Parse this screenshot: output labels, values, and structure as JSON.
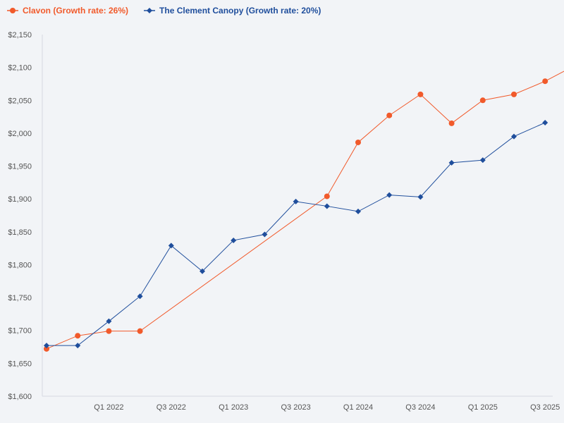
{
  "chart_data": {
    "type": "line",
    "x": [
      "Q3 2021",
      "Q4 2021",
      "Q1 2022",
      "Q2 2022",
      "Q3 2022",
      "Q4 2022",
      "Q1 2023",
      "Q2 2023",
      "Q3 2023",
      "Q4 2023",
      "Q1 2024",
      "Q2 2024",
      "Q3 2024",
      "Q4 2024",
      "Q1 2025",
      "Q2 2025",
      "Q3 2025",
      "Q4 2025"
    ],
    "x_tick_labels": [
      "Q1 2022",
      "Q3 2022",
      "Q1 2023",
      "Q3 2023",
      "Q1 2024",
      "Q3 2024",
      "Q1 2025",
      "Q3 2025"
    ],
    "x_tick_values": [
      "Q1 2022",
      "Q3 2022",
      "Q1 2023",
      "Q3 2023",
      "Q1 2024",
      "Q3 2024",
      "Q1 2025",
      "Q3 2025"
    ],
    "y_ticks": [
      1600,
      1650,
      1700,
      1750,
      1800,
      1850,
      1900,
      1950,
      2000,
      2050,
      2100,
      2150
    ],
    "y_tick_labels": [
      "$1,600",
      "$1,650",
      "$1,700",
      "$1,750",
      "$1,800",
      "$1,850",
      "$1,900",
      "$1,950",
      "$2,000",
      "$2,050",
      "$2,100",
      "$2,150"
    ],
    "ylim": [
      1600,
      2150
    ],
    "grid": false,
    "legend_position": "top-left",
    "series": [
      {
        "name": "Clavon (Growth rate: 26%)",
        "color": "#f15a2b",
        "marker": "circle",
        "points": [
          {
            "x": "Q3 2021",
            "y": 1672
          },
          {
            "x": "Q4 2021",
            "y": 1692
          },
          {
            "x": "Q1 2022",
            "y": 1699
          },
          {
            "x": "Q2 2022",
            "y": 1699
          },
          {
            "x": "Q4 2023",
            "y": 1904
          },
          {
            "x": "Q1 2024",
            "y": 1986
          },
          {
            "x": "Q2 2024",
            "y": 2027
          },
          {
            "x": "Q3 2024",
            "y": 2059
          },
          {
            "x": "Q4 2024",
            "y": 2015
          },
          {
            "x": "Q1 2025",
            "y": 2050
          },
          {
            "x": "Q2 2025",
            "y": 2059
          },
          {
            "x": "Q3 2025",
            "y": 2079
          },
          {
            "x": "Q4 2025",
            "y": 2104
          }
        ]
      },
      {
        "name": "The Clement Canopy (Growth rate: 20%)",
        "color": "#1f4e9c",
        "marker": "diamond",
        "points": [
          {
            "x": "Q3 2021",
            "y": 1677
          },
          {
            "x": "Q4 2021",
            "y": 1677
          },
          {
            "x": "Q1 2022",
            "y": 1714
          },
          {
            "x": "Q2 2022",
            "y": 1752
          },
          {
            "x": "Q3 2022",
            "y": 1829
          },
          {
            "x": "Q4 2022",
            "y": 1790
          },
          {
            "x": "Q1 2023",
            "y": 1837
          },
          {
            "x": "Q2 2023",
            "y": 1846
          },
          {
            "x": "Q3 2023",
            "y": 1896
          },
          {
            "x": "Q4 2023",
            "y": 1889
          },
          {
            "x": "Q1 2024",
            "y": 1881
          },
          {
            "x": "Q2 2024",
            "y": 1906
          },
          {
            "x": "Q3 2024",
            "y": 1903
          },
          {
            "x": "Q4 2024",
            "y": 1955
          },
          {
            "x": "Q1 2025",
            "y": 1959
          },
          {
            "x": "Q2 2025",
            "y": 1995
          },
          {
            "x": "Q3 2025",
            "y": 2016
          }
        ]
      }
    ]
  }
}
